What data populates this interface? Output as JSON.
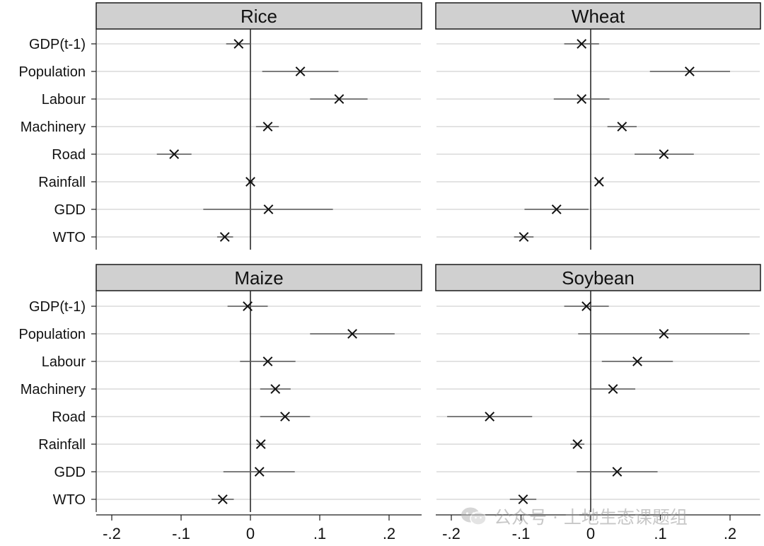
{
  "chart_data": {
    "type": "coefficient-plot",
    "layout": "2x2 facets",
    "variables": [
      "GDP(t-1)",
      "Population",
      "Labour",
      "Machinery",
      "Road",
      "Rainfall",
      "GDD",
      "WTO"
    ],
    "x_ticks": [
      -0.2,
      -0.1,
      0,
      0.1,
      0.2
    ],
    "x_tick_labels": [
      "-.2",
      "-.1",
      "0",
      ".1",
      ".2"
    ],
    "xlim": [
      -0.225,
      0.25
    ],
    "reference_line": 0,
    "grid": "horizontal",
    "marker": "x",
    "panels": [
      {
        "title": "Rice",
        "estimates": [
          -0.017,
          0.072,
          0.128,
          0.025,
          -0.11,
          0.0,
          0.026,
          -0.037
        ],
        "ci_low": [
          -0.035,
          0.017,
          0.086,
          0.008,
          -0.135,
          -0.003,
          -0.068,
          -0.048
        ],
        "ci_high": [
          0.001,
          0.127,
          0.169,
          0.041,
          -0.085,
          0.004,
          0.119,
          -0.025
        ]
      },
      {
        "title": "Wheat",
        "estimates": [
          -0.013,
          0.142,
          -0.013,
          0.045,
          0.105,
          0.012,
          -0.049,
          -0.096
        ],
        "ci_low": [
          -0.038,
          0.085,
          -0.053,
          0.024,
          0.063,
          0.009,
          -0.095,
          -0.11
        ],
        "ci_high": [
          0.012,
          0.2,
          0.027,
          0.066,
          0.148,
          0.015,
          -0.003,
          -0.082
        ]
      },
      {
        "title": "Maize",
        "estimates": [
          -0.004,
          0.147,
          0.025,
          0.036,
          0.05,
          0.015,
          0.013,
          -0.04
        ],
        "ci_low": [
          -0.033,
          0.086,
          -0.015,
          0.014,
          0.014,
          0.009,
          -0.039,
          -0.056
        ],
        "ci_high": [
          0.025,
          0.208,
          0.065,
          0.058,
          0.086,
          0.021,
          0.064,
          -0.024
        ]
      },
      {
        "title": "Soybean",
        "estimates": [
          -0.006,
          0.105,
          0.067,
          0.032,
          -0.145,
          -0.019,
          0.038,
          -0.097
        ],
        "ci_low": [
          -0.038,
          -0.018,
          0.016,
          0.0,
          -0.206,
          -0.029,
          -0.02,
          -0.116
        ],
        "ci_high": [
          0.026,
          0.228,
          0.118,
          0.064,
          -0.084,
          -0.009,
          0.096,
          -0.078
        ]
      }
    ]
  },
  "watermark": {
    "text": "公众号 · 土地生态课题组",
    "icon": "wechat-icon"
  }
}
